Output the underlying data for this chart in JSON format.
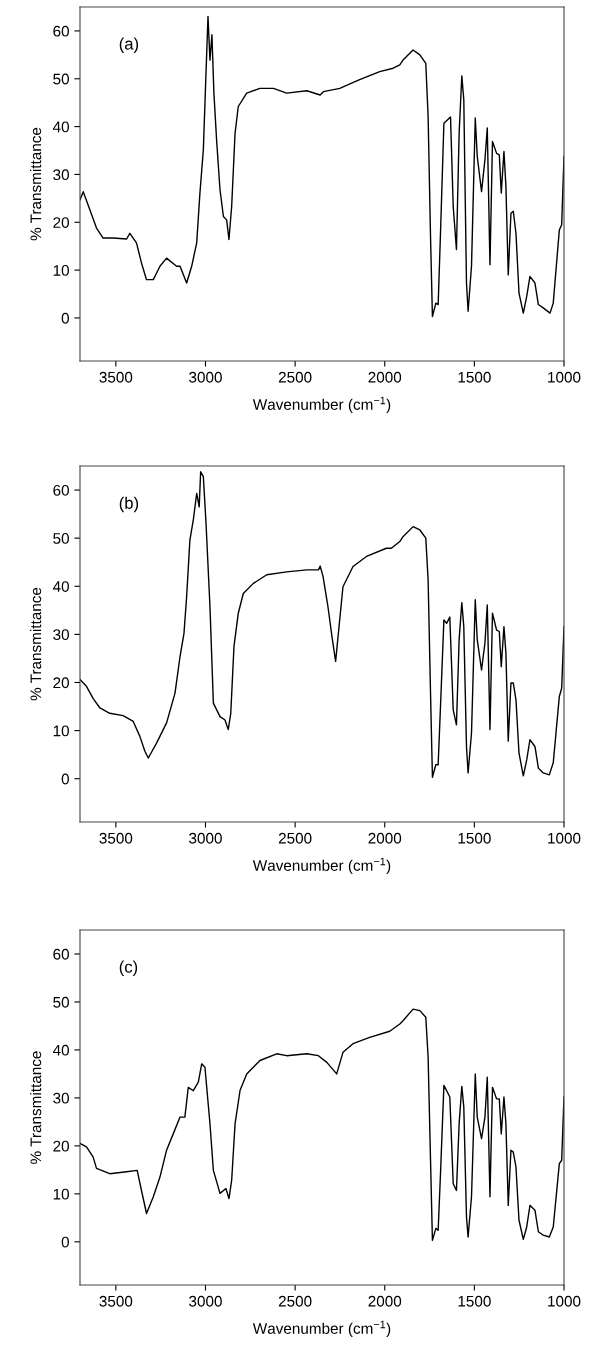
{
  "chart_data": [
    {
      "type": "line",
      "annotations": [
        "(a)"
      ],
      "xlabel": "Wavenumber (cm$^{−1}$)",
      "ylabel": "% Transmittance",
      "xlim": [
        3700,
        1000
      ],
      "ylim": [
        -9,
        65
      ],
      "xticks": [
        3500,
        3000,
        2500,
        2000,
        1500,
        1000
      ],
      "yticks": [
        0,
        10,
        20,
        30,
        40,
        50,
        60
      ],
      "grid": false,
      "legend": false,
      "series": [
        {
          "color": "#000000",
          "x": [
            3700,
            3682,
            3645,
            3608,
            3571,
            3515,
            3440,
            3422,
            3385,
            3357,
            3329,
            3291,
            3254,
            3217,
            3161,
            3142,
            3105,
            3077,
            3049,
            3031,
            3012,
            2999,
            2986,
            2975,
            2964,
            2953,
            2938,
            2919,
            2900,
            2882,
            2869,
            2854,
            2835,
            2817,
            2770,
            2696,
            2621,
            2547,
            2435,
            2360,
            2342,
            2251,
            2140,
            2028,
            1953,
            1916,
            1898,
            1842,
            1804,
            1771,
            1758,
            1745,
            1734,
            1715,
            1702,
            1689,
            1670,
            1633,
            1618,
            1600,
            1585,
            1570,
            1559,
            1544,
            1535,
            1516,
            1495,
            1484,
            1460,
            1441,
            1428,
            1413,
            1399,
            1376,
            1361,
            1350,
            1335,
            1324,
            1311,
            1296,
            1283,
            1268,
            1251,
            1227,
            1208,
            1190,
            1162,
            1143,
            1116,
            1078,
            1060,
            1026,
            1013,
            1000
          ],
          "values": [
            24.7,
            26.4,
            22.6,
            18.8,
            16.7,
            16.7,
            16.5,
            17.7,
            15.7,
            11.5,
            8.0,
            8.0,
            10.8,
            12.5,
            10.8,
            10.8,
            7.3,
            10.8,
            15.7,
            26.1,
            35.1,
            49.1,
            63.0,
            53.9,
            59.2,
            47.0,
            37.2,
            26.8,
            21.2,
            20.5,
            16.4,
            23.3,
            38.6,
            44.2,
            47.0,
            48.0,
            48.0,
            47.0,
            47.5,
            46.6,
            47.3,
            48.0,
            49.8,
            51.5,
            52.2,
            52.9,
            53.9,
            56.0,
            55.0,
            53.2,
            42.1,
            17.7,
            0.3,
            3.1,
            2.8,
            17.7,
            40.7,
            42.0,
            23.3,
            14.3,
            38.6,
            50.6,
            45.6,
            7.3,
            1.4,
            10.8,
            41.8,
            33.8,
            26.4,
            33.1,
            39.7,
            11.1,
            36.9,
            34.4,
            34.1,
            26.1,
            34.8,
            27.5,
            9.0,
            21.9,
            22.3,
            17.7,
            5.2,
            1.0,
            4.5,
            8.7,
            7.3,
            2.8,
            2.1,
            1.0,
            3.1,
            18.4,
            19.5,
            33.8
          ]
        }
      ]
    },
    {
      "type": "line",
      "annotations": [
        "(b)"
      ],
      "xlabel": "Wavenumber (cm$^{−1}$)",
      "ylabel": "% Transmittance",
      "xlim": [
        3700,
        1000
      ],
      "ylim": [
        -9,
        65
      ],
      "xticks": [
        3500,
        3000,
        2500,
        2000,
        1500,
        1000
      ],
      "yticks": [
        0,
        10,
        20,
        30,
        40,
        50,
        60
      ],
      "grid": false,
      "legend": false,
      "series": [
        {
          "color": "#000000",
          "x": [
            3700,
            3664,
            3627,
            3589,
            3534,
            3459,
            3403,
            3366,
            3338,
            3319,
            3273,
            3217,
            3170,
            3142,
            3120,
            3105,
            3087,
            3068,
            3049,
            3035,
            3027,
            3012,
            2997,
            2975,
            2956,
            2919,
            2891,
            2873,
            2859,
            2841,
            2817,
            2789,
            2733,
            2658,
            2547,
            2435,
            2370,
            2360,
            2344,
            2317,
            2292,
            2274,
            2255,
            2233,
            2177,
            2102,
            1991,
            1963,
            1916,
            1898,
            1842,
            1804,
            1771,
            1758,
            1745,
            1734,
            1715,
            1702,
            1689,
            1670,
            1655,
            1637,
            1618,
            1600,
            1585,
            1570,
            1559,
            1544,
            1535,
            1516,
            1495,
            1484,
            1460,
            1441,
            1428,
            1413,
            1399,
            1376,
            1361,
            1350,
            1335,
            1324,
            1311,
            1296,
            1283,
            1268,
            1251,
            1227,
            1208,
            1190,
            1162,
            1143,
            1116,
            1082,
            1060,
            1026,
            1013,
            1000
          ],
          "values": [
            20.6,
            19.2,
            16.7,
            14.7,
            13.6,
            13.1,
            11.9,
            8.8,
            5.7,
            4.3,
            7.4,
            11.6,
            17.8,
            25.4,
            30.2,
            37.9,
            49.6,
            53.8,
            59.3,
            56.5,
            63.8,
            62.8,
            53.1,
            35.8,
            15.7,
            12.9,
            12.2,
            10.2,
            13.6,
            27.5,
            34.4,
            38.5,
            40.6,
            42.4,
            43.0,
            43.4,
            43.4,
            44.2,
            42.0,
            35.8,
            28.9,
            24.4,
            31.6,
            39.9,
            44.1,
            46.2,
            47.9,
            47.9,
            49.3,
            50.3,
            52.4,
            51.7,
            50.0,
            41.3,
            18.5,
            0.3,
            2.9,
            2.9,
            15.0,
            33.0,
            32.3,
            33.6,
            14.3,
            11.2,
            28.9,
            36.6,
            31.6,
            6.7,
            1.2,
            9.5,
            37.2,
            28.9,
            22.6,
            28.2,
            36.1,
            10.2,
            34.4,
            30.9,
            30.6,
            23.3,
            31.6,
            26.1,
            7.8,
            19.9,
            19.9,
            16.4,
            5.3,
            0.6,
            3.9,
            8.1,
            6.7,
            2.2,
            1.2,
            0.8,
            3.3,
            17.1,
            18.8,
            31.6
          ]
        }
      ]
    },
    {
      "type": "line",
      "annotations": [
        "(c)"
      ],
      "xlabel": "Wavenumber (cm$^{−1}$)",
      "ylabel": "% Transmittance",
      "xlim": [
        3700,
        1000
      ],
      "ylim": [
        -9,
        65
      ],
      "xticks": [
        3500,
        3000,
        2500,
        2000,
        1500,
        1000
      ],
      "yticks": [
        0,
        10,
        20,
        30,
        40,
        50,
        60
      ],
      "grid": false,
      "legend": false,
      "series": [
        {
          "color": "#000000",
          "x": [
            3700,
            3664,
            3627,
            3608,
            3534,
            3440,
            3381,
            3357,
            3329,
            3291,
            3254,
            3217,
            3180,
            3142,
            3115,
            3096,
            3068,
            3040,
            3021,
            3003,
            2975,
            2956,
            2919,
            2886,
            2869,
            2854,
            2835,
            2807,
            2770,
            2696,
            2603,
            2547,
            2435,
            2370,
            2323,
            2268,
            2233,
            2177,
            2084,
            1972,
            1916,
            1898,
            1842,
            1804,
            1771,
            1758,
            1745,
            1734,
            1715,
            1702,
            1689,
            1670,
            1637,
            1618,
            1600,
            1585,
            1570,
            1559,
            1544,
            1535,
            1516,
            1495,
            1484,
            1460,
            1441,
            1428,
            1413,
            1399,
            1376,
            1361,
            1350,
            1335,
            1324,
            1311,
            1296,
            1283,
            1268,
            1251,
            1227,
            1208,
            1190,
            1162,
            1143,
            1116,
            1082,
            1060,
            1026,
            1013,
            1000
          ],
          "values": [
            20.5,
            19.8,
            17.7,
            15.3,
            14.2,
            14.6,
            14.9,
            10.7,
            5.9,
            9.4,
            13.5,
            19.1,
            22.5,
            26.0,
            26.0,
            32.2,
            31.5,
            33.3,
            37.1,
            36.4,
            24.6,
            14.9,
            10.1,
            11.1,
            9.0,
            12.8,
            24.6,
            31.6,
            35.0,
            37.8,
            39.2,
            38.8,
            39.2,
            38.8,
            37.4,
            35.0,
            39.5,
            41.3,
            42.6,
            43.9,
            45.4,
            46.1,
            48.5,
            48.2,
            46.8,
            38.5,
            17.7,
            0.3,
            2.8,
            2.4,
            14.2,
            32.6,
            30.2,
            12.1,
            10.7,
            24.6,
            32.4,
            28.1,
            5.2,
            1.0,
            9.4,
            35.0,
            26.0,
            21.5,
            26.0,
            34.3,
            9.4,
            32.2,
            29.8,
            29.8,
            22.5,
            30.2,
            24.6,
            7.6,
            19.1,
            18.7,
            15.6,
            4.5,
            0.5,
            3.1,
            7.6,
            6.6,
            2.1,
            1.4,
            1.0,
            3.1,
            16.3,
            17.0,
            30.2
          ]
        }
      ]
    }
  ]
}
